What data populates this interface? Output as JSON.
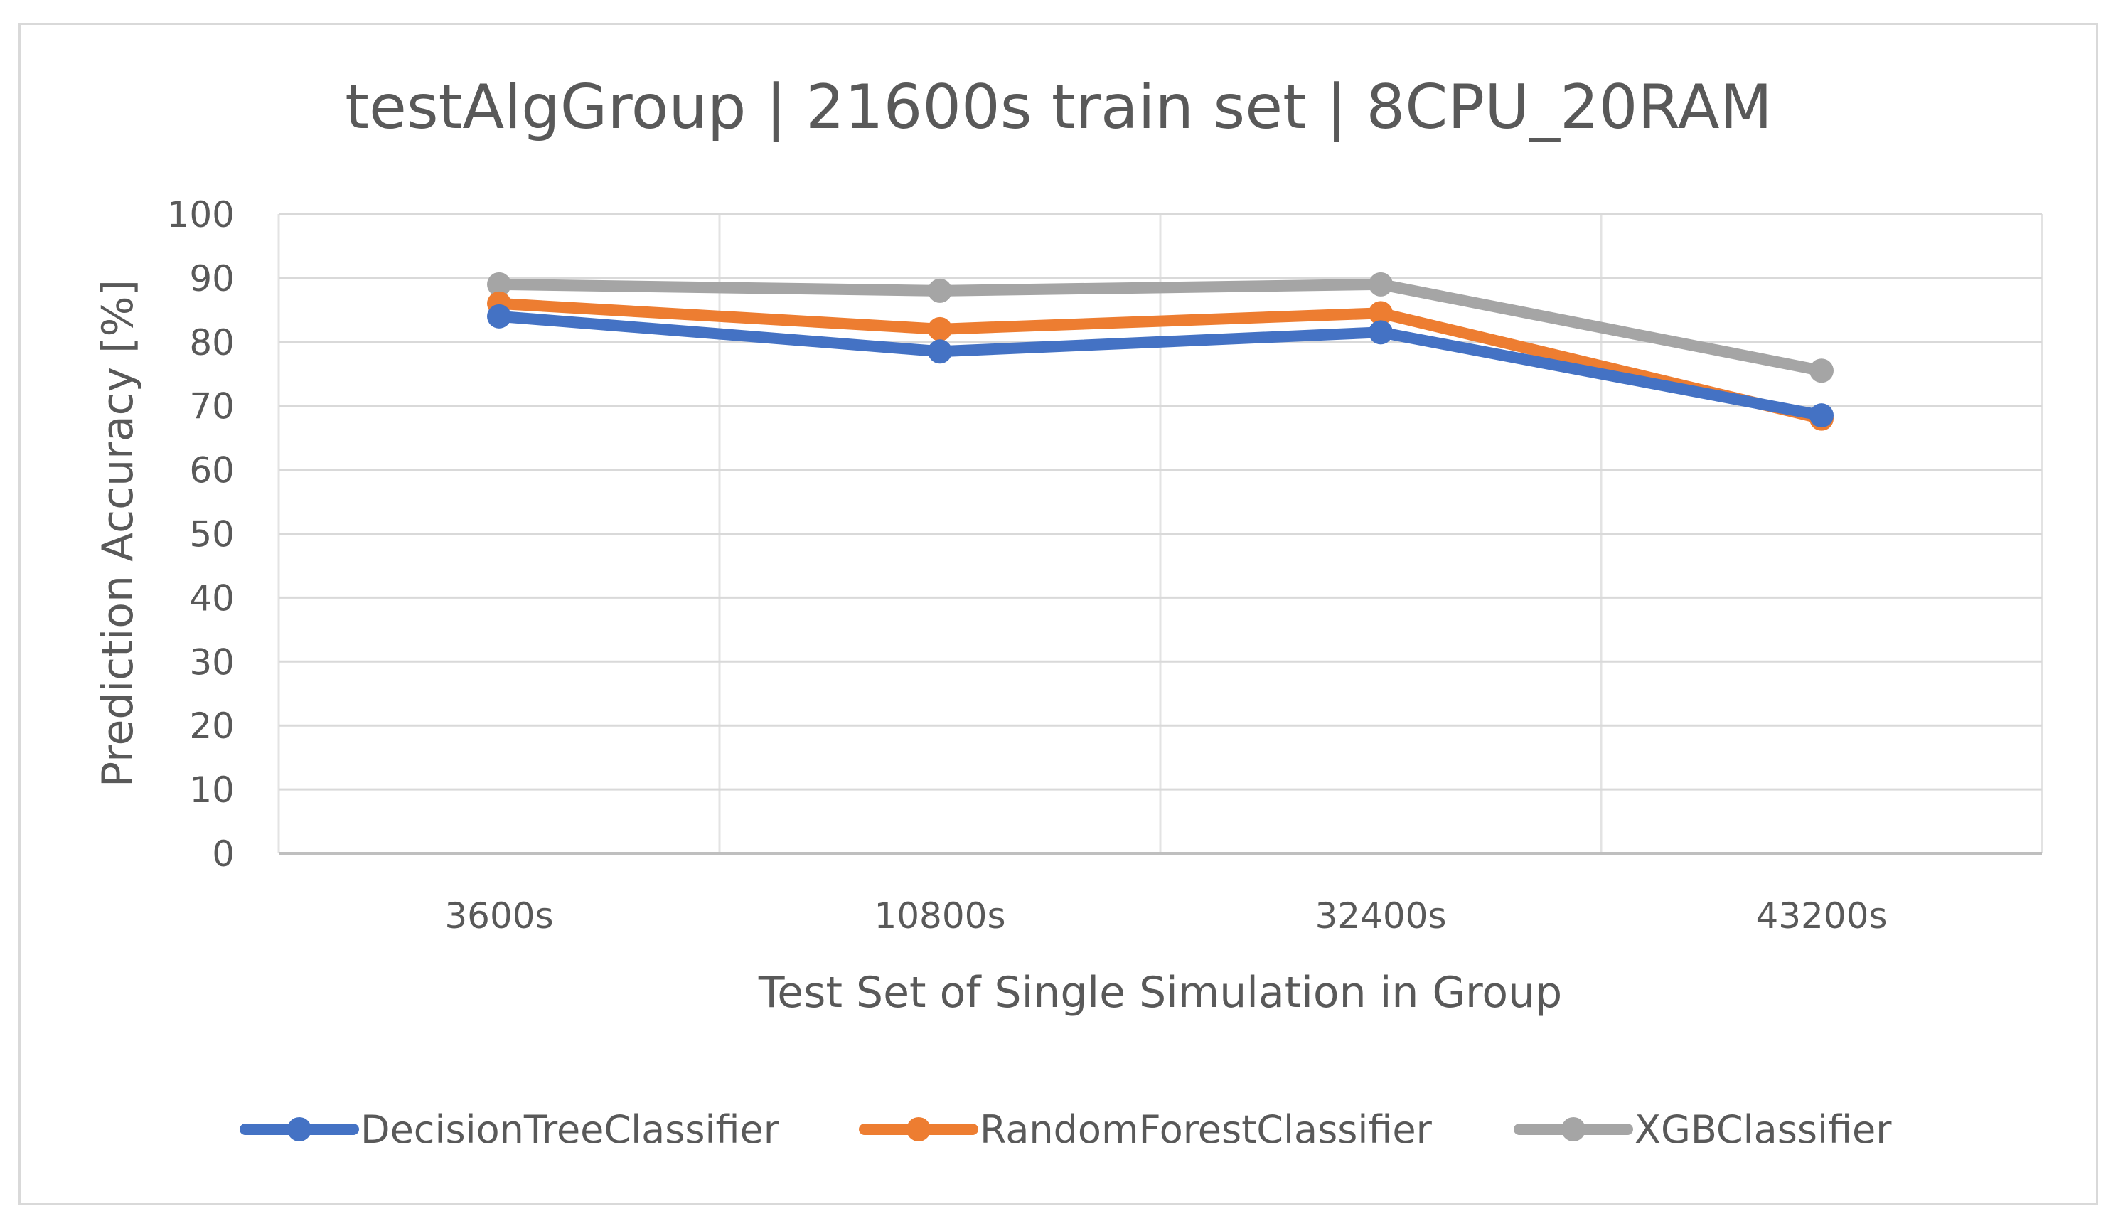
{
  "chart_data": {
    "type": "line",
    "title": "testAlgGroup | 21600s train set | 8CPU_20RAM",
    "xlabel": "Test Set of Single Simulation in Group",
    "ylabel": "Prediction Accuracy [%]",
    "categories": [
      "3600s",
      "10800s",
      "32400s",
      "43200s"
    ],
    "ylim": [
      0,
      100
    ],
    "yticks": [
      0,
      10,
      20,
      30,
      40,
      50,
      60,
      70,
      80,
      90,
      100
    ],
    "grid": true,
    "legend_position": "bottom",
    "series": [
      {
        "name": "DecisionTreeClassifier",
        "color": "#4472C4",
        "values": [
          84,
          78.5,
          81.5,
          68.5
        ]
      },
      {
        "name": "RandomForestClassifier",
        "color": "#ED7D31",
        "values": [
          86,
          82,
          84.5,
          68
        ]
      },
      {
        "name": "XGBClassifier",
        "color": "#A5A5A5",
        "values": [
          89,
          88,
          89,
          75.5
        ]
      }
    ]
  }
}
